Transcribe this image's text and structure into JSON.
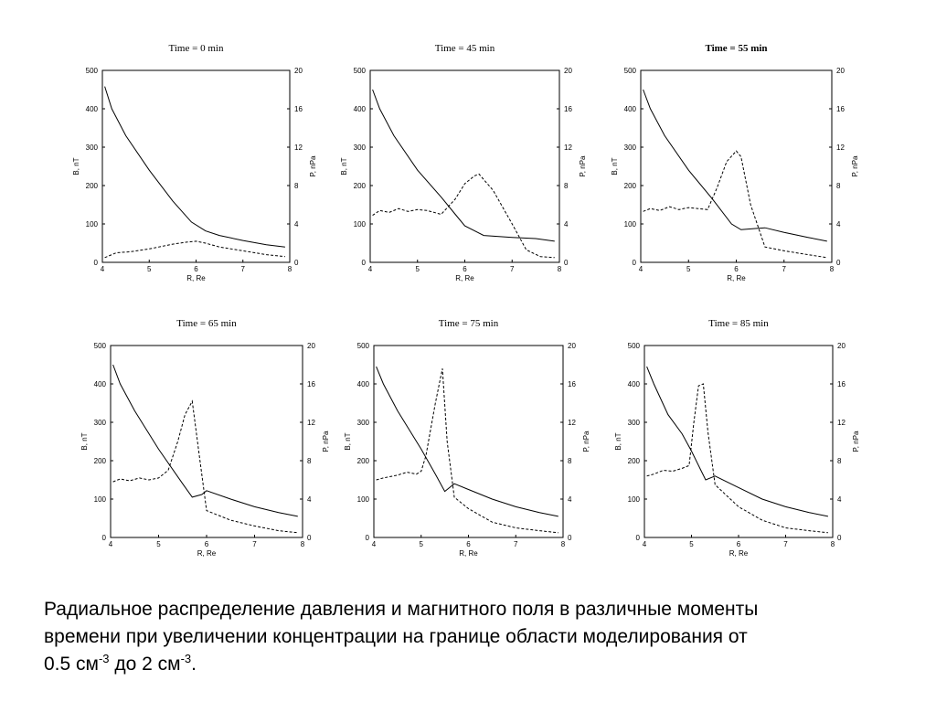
{
  "caption": {
    "line1": "Радиальное распределение давления и магнитного поля в различные моменты",
    "line2": "времени при увеличении концентрации на границе области моделирования от",
    "line3_a": "0.5 см",
    "line3_sup1": "-3",
    "line3_b": " до 2 см",
    "line3_sup2": "-3",
    "line3_c": "."
  },
  "chart_data": [
    {
      "type": "line",
      "title": "Time = 0 min",
      "title_bold": false,
      "xlabel": "R, Re",
      "ylabel_left": "B, nT",
      "ylabel_right": "P, nPa",
      "xlim": [
        4,
        8
      ],
      "ylim_left": [
        0,
        500
      ],
      "ylim_right": [
        0,
        20
      ],
      "xticks": [
        "4",
        "5",
        "6",
        "7",
        "8"
      ],
      "yticks_left": [
        "0",
        "100",
        "200",
        "300",
        "400",
        "500"
      ],
      "yticks_right": [
        "0",
        "4",
        "8",
        "12",
        "16",
        "20"
      ],
      "series": [
        {
          "axis": "left",
          "style": "solid",
          "x": [
            4.05,
            4.2,
            4.5,
            5.0,
            5.5,
            5.9,
            6.2,
            6.5,
            7.0,
            7.5,
            7.9
          ],
          "y": [
            458,
            400,
            330,
            240,
            160,
            105,
            82,
            70,
            57,
            46,
            40
          ]
        },
        {
          "axis": "right",
          "style": "dashed",
          "x": [
            4.05,
            4.3,
            4.6,
            5.0,
            5.5,
            5.8,
            6.0,
            6.2,
            6.5,
            7.0,
            7.5,
            7.9
          ],
          "y": [
            0.5,
            1.0,
            1.1,
            1.4,
            1.9,
            2.1,
            2.2,
            2.0,
            1.6,
            1.2,
            0.8,
            0.6
          ]
        }
      ]
    },
    {
      "type": "line",
      "title": "Time = 45 min",
      "title_bold": false,
      "xlabel": "R, Re",
      "ylabel_left": "B, nT",
      "ylabel_right": "P, nPa",
      "xlim": [
        4,
        8
      ],
      "ylim_left": [
        0,
        500
      ],
      "ylim_right": [
        0,
        20
      ],
      "xticks": [
        "4",
        "5",
        "6",
        "7",
        "8"
      ],
      "yticks_left": [
        "0",
        "100",
        "200",
        "300",
        "400",
        "500"
      ],
      "yticks_right": [
        "0",
        "4",
        "8",
        "12",
        "16",
        "20"
      ],
      "series": [
        {
          "axis": "left",
          "style": "solid",
          "x": [
            4.05,
            4.2,
            4.5,
            5.0,
            5.5,
            5.8,
            6.0,
            6.4,
            7.0,
            7.5,
            7.9
          ],
          "y": [
            450,
            400,
            330,
            240,
            170,
            125,
            95,
            70,
            65,
            62,
            55
          ]
        },
        {
          "axis": "right",
          "style": "dashed",
          "x": [
            4.05,
            4.2,
            4.4,
            4.6,
            4.8,
            5.0,
            5.2,
            5.5,
            5.8,
            6.0,
            6.2,
            6.3,
            6.6,
            7.0,
            7.3,
            7.6,
            7.9
          ],
          "y": [
            4.9,
            5.4,
            5.2,
            5.6,
            5.3,
            5.5,
            5.4,
            5.0,
            6.6,
            8.2,
            9.0,
            9.2,
            7.5,
            4.0,
            1.3,
            0.6,
            0.5
          ]
        }
      ]
    },
    {
      "type": "line",
      "title": "Time = 55 min",
      "title_bold": true,
      "xlabel": "R, Re",
      "ylabel_left": "B, nT",
      "ylabel_right": "P, nPa",
      "xlim": [
        4,
        8
      ],
      "ylim_left": [
        0,
        500
      ],
      "ylim_right": [
        0,
        20
      ],
      "xticks": [
        "4",
        "5",
        "6",
        "7",
        "8"
      ],
      "yticks_left": [
        "0",
        "100",
        "200",
        "300",
        "400",
        "500"
      ],
      "yticks_right": [
        "0",
        "4",
        "8",
        "12",
        "16",
        "20"
      ],
      "series": [
        {
          "axis": "left",
          "style": "solid",
          "x": [
            4.05,
            4.2,
            4.5,
            5.0,
            5.5,
            5.9,
            6.1,
            6.4,
            6.6,
            7.0,
            7.5,
            7.9
          ],
          "y": [
            450,
            400,
            330,
            240,
            165,
            100,
            85,
            88,
            90,
            78,
            65,
            55
          ]
        },
        {
          "axis": "right",
          "style": "dashed",
          "x": [
            4.05,
            4.2,
            4.4,
            4.6,
            4.8,
            5.0,
            5.2,
            5.4,
            5.6,
            5.8,
            6.0,
            6.1,
            6.3,
            6.6,
            7.0,
            7.5,
            7.9
          ],
          "y": [
            5.3,
            5.6,
            5.4,
            5.8,
            5.5,
            5.7,
            5.6,
            5.5,
            7.8,
            10.5,
            11.6,
            11.0,
            6.0,
            1.6,
            1.2,
            0.8,
            0.5
          ]
        }
      ]
    },
    {
      "type": "line",
      "title": "Time = 65 min",
      "title_bold": false,
      "xlabel": "R, Re",
      "ylabel_left": "B, nT",
      "ylabel_right": "P, nPa",
      "xlim": [
        4,
        8
      ],
      "ylim_left": [
        0,
        500
      ],
      "ylim_right": [
        0,
        20
      ],
      "xticks": [
        "4",
        "5",
        "6",
        "7",
        "8"
      ],
      "yticks_left": [
        "0",
        "100",
        "200",
        "300",
        "400",
        "500"
      ],
      "yticks_right": [
        "0",
        "4",
        "8",
        "12",
        "16",
        "20"
      ],
      "series": [
        {
          "axis": "left",
          "style": "solid",
          "x": [
            4.05,
            4.2,
            4.5,
            5.0,
            5.5,
            5.7,
            5.9,
            6.0,
            6.5,
            7.0,
            7.5,
            7.9
          ],
          "y": [
            450,
            400,
            330,
            230,
            140,
            105,
            112,
            122,
            100,
            80,
            65,
            55
          ]
        },
        {
          "axis": "right",
          "style": "dashed",
          "x": [
            4.05,
            4.2,
            4.4,
            4.6,
            4.8,
            5.0,
            5.2,
            5.4,
            5.55,
            5.7,
            5.85,
            6.0,
            6.5,
            7.0,
            7.5,
            7.9
          ],
          "y": [
            5.8,
            6.1,
            5.9,
            6.2,
            6.0,
            6.2,
            7.0,
            10.0,
            12.8,
            14.2,
            8.5,
            2.8,
            1.8,
            1.2,
            0.7,
            0.5
          ]
        }
      ]
    },
    {
      "type": "line",
      "title": "Time = 75 min",
      "title_bold": false,
      "xlabel": "R, Re",
      "ylabel_left": "B, nT",
      "ylabel_right": "P, nPa",
      "xlim": [
        4,
        8
      ],
      "ylim_left": [
        0,
        500
      ],
      "ylim_right": [
        0,
        20
      ],
      "xticks": [
        "4",
        "5",
        "6",
        "7",
        "8"
      ],
      "yticks_left": [
        "0",
        "100",
        "200",
        "300",
        "400",
        "500"
      ],
      "yticks_right": [
        "0",
        "4",
        "8",
        "12",
        "16",
        "20"
      ],
      "series": [
        {
          "axis": "left",
          "style": "solid",
          "x": [
            4.05,
            4.2,
            4.5,
            5.0,
            5.3,
            5.5,
            5.7,
            6.0,
            6.5,
            7.0,
            7.5,
            7.9
          ],
          "y": [
            445,
            400,
            330,
            230,
            165,
            120,
            140,
            125,
            100,
            80,
            65,
            55
          ]
        },
        {
          "axis": "right",
          "style": "dashed",
          "x": [
            4.05,
            4.2,
            4.5,
            4.7,
            4.9,
            5.0,
            5.1,
            5.3,
            5.45,
            5.55,
            5.7,
            6.0,
            6.5,
            7.0,
            7.5,
            7.9
          ],
          "y": [
            6.0,
            6.2,
            6.5,
            6.8,
            6.6,
            6.9,
            8.5,
            14.0,
            17.6,
            10.0,
            4.2,
            3.0,
            1.6,
            1.0,
            0.7,
            0.5
          ]
        }
      ]
    },
    {
      "type": "line",
      "title": "Time = 85 min",
      "title_bold": false,
      "xlabel": "R, Re",
      "ylabel_left": "B, nT",
      "ylabel_right": "P, nPa",
      "xlim": [
        4,
        8
      ],
      "ylim_left": [
        0,
        500
      ],
      "ylim_right": [
        0,
        20
      ],
      "xticks": [
        "4",
        "5",
        "6",
        "7",
        "8"
      ],
      "yticks_left": [
        "0",
        "100",
        "200",
        "300",
        "400",
        "500"
      ],
      "yticks_right": [
        "0",
        "4",
        "8",
        "12",
        "16",
        "20"
      ],
      "series": [
        {
          "axis": "left",
          "style": "solid",
          "x": [
            4.05,
            4.2,
            4.5,
            4.8,
            5.0,
            5.2,
            5.3,
            5.5,
            6.0,
            6.5,
            7.0,
            7.5,
            7.9
          ],
          "y": [
            445,
            400,
            320,
            270,
            225,
            175,
            150,
            160,
            130,
            100,
            80,
            65,
            55
          ]
        },
        {
          "axis": "right",
          "style": "dashed",
          "x": [
            4.05,
            4.2,
            4.4,
            4.6,
            4.8,
            4.95,
            5.05,
            5.15,
            5.25,
            5.35,
            5.5,
            6.0,
            6.5,
            7.0,
            7.5,
            7.9
          ],
          "y": [
            6.4,
            6.6,
            7.0,
            6.9,
            7.2,
            7.5,
            12.0,
            15.8,
            16.0,
            11.0,
            5.5,
            3.2,
            1.8,
            1.0,
            0.7,
            0.5
          ]
        }
      ]
    }
  ]
}
